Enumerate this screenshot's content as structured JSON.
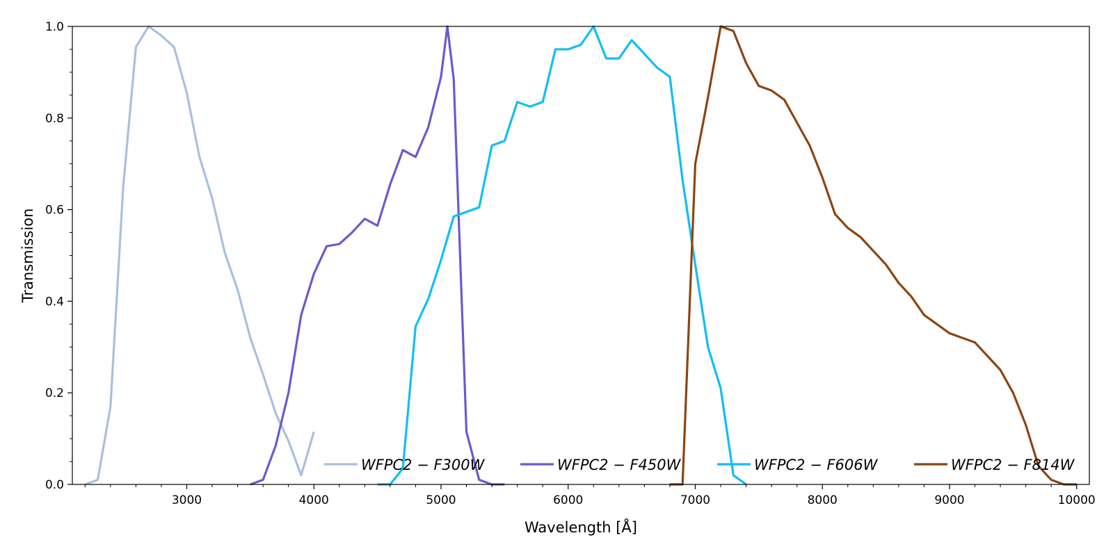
{
  "chart_data": {
    "type": "line",
    "title": "",
    "xlabel": "Wavelength [Å]",
    "ylabel": "Transmission",
    "xlim": [
      2100,
      10100
    ],
    "ylim": [
      0,
      1.0
    ],
    "xticks": [
      3000,
      4000,
      5000,
      6000,
      7000,
      8000,
      9000,
      10000
    ],
    "yticks": [
      0.0,
      0.2,
      0.4,
      0.6,
      0.8,
      1.0
    ],
    "xticks_minor_step": 200,
    "yticks_minor_step": 0.05,
    "grid": false,
    "legend": {
      "placement": "lower-right",
      "columns": 4
    },
    "series": [
      {
        "name": "WFPC2 − F300W",
        "color": "#a8c0de",
        "x": [
          2200,
          2300,
          2400,
          2500,
          2600,
          2700,
          2800,
          2900,
          3000,
          3100,
          3200,
          3300,
          3400,
          3500,
          3600,
          3700,
          3800,
          3900,
          4000
        ],
        "y": [
          0.0,
          0.01,
          0.17,
          0.65,
          0.955,
          1.0,
          0.98,
          0.955,
          0.855,
          0.715,
          0.625,
          0.505,
          0.425,
          0.32,
          0.24,
          0.155,
          0.095,
          0.02,
          0.115
        ]
      },
      {
        "name": "WFPC2 − F450W",
        "color": "#6a5acd",
        "x": [
          3500,
          3600,
          3700,
          3800,
          3900,
          4000,
          4100,
          4200,
          4300,
          4400,
          4500,
          4600,
          4700,
          4800,
          4900,
          5000,
          5050,
          5100,
          5200,
          5300,
          5400,
          5500
        ],
        "y": [
          0.0,
          0.01,
          0.085,
          0.2,
          0.37,
          0.46,
          0.52,
          0.525,
          0.55,
          0.58,
          0.565,
          0.655,
          0.73,
          0.715,
          0.78,
          0.89,
          1.0,
          0.885,
          0.115,
          0.01,
          0.0,
          0.0
        ]
      },
      {
        "name": "WFPC2 − F606W",
        "color": "#0fbef5",
        "x": [
          4500,
          4600,
          4700,
          4800,
          4900,
          5000,
          5100,
          5300,
          5400,
          5500,
          5600,
          5700,
          5800,
          5900,
          6000,
          6100,
          6200,
          6300,
          6400,
          6500,
          6600,
          6700,
          6800,
          6900,
          7000,
          7100,
          7200,
          7300,
          7400
        ],
        "y": [
          0.0,
          0.0,
          0.035,
          0.345,
          0.405,
          0.49,
          0.585,
          0.605,
          0.74,
          0.75,
          0.835,
          0.825,
          0.835,
          0.95,
          0.95,
          0.96,
          1.0,
          0.93,
          0.93,
          0.97,
          0.94,
          0.91,
          0.89,
          0.665,
          0.48,
          0.3,
          0.21,
          0.02,
          0.0
        ]
      },
      {
        "name": "WFPC2 − F814W",
        "color": "#8b4513",
        "x": [
          6800,
          6900,
          7000,
          7100,
          7200,
          7300,
          7400,
          7500,
          7600,
          7700,
          7800,
          7900,
          8000,
          8100,
          8200,
          8300,
          8400,
          8500,
          8600,
          8700,
          8800,
          8900,
          9000,
          9100,
          9200,
          9300,
          9400,
          9500,
          9600,
          9700,
          9800,
          9900,
          10000
        ],
        "y": [
          0.0,
          0.0,
          0.7,
          0.845,
          1.0,
          0.99,
          0.92,
          0.87,
          0.86,
          0.84,
          0.79,
          0.74,
          0.67,
          0.59,
          0.56,
          0.54,
          0.51,
          0.48,
          0.44,
          0.41,
          0.37,
          0.35,
          0.33,
          0.32,
          0.31,
          0.28,
          0.25,
          0.2,
          0.13,
          0.04,
          0.01,
          0.0,
          0.0
        ]
      }
    ]
  }
}
